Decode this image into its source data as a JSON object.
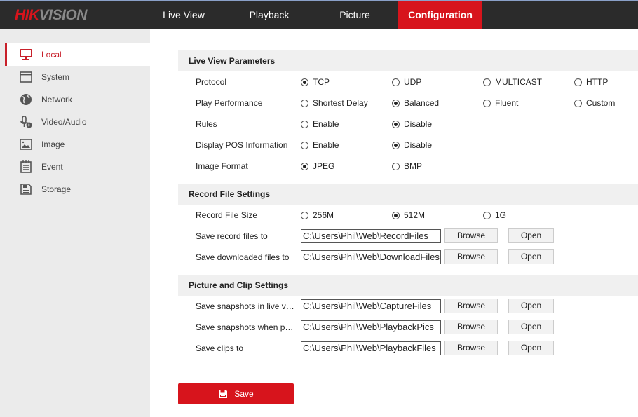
{
  "brand": {
    "part1": "HIK",
    "part2": "VISION"
  },
  "nav": [
    {
      "label": "Live View"
    },
    {
      "label": "Playback"
    },
    {
      "label": "Picture"
    },
    {
      "label": "Configuration",
      "active": true
    }
  ],
  "sidebar": [
    {
      "label": "Local",
      "icon": "monitor-icon",
      "active": true
    },
    {
      "label": "System",
      "icon": "window-icon"
    },
    {
      "label": "Network",
      "icon": "globe-icon"
    },
    {
      "label": "Video/Audio",
      "icon": "microphone-icon"
    },
    {
      "label": "Image",
      "icon": "image-icon"
    },
    {
      "label": "Event",
      "icon": "calendar-icon"
    },
    {
      "label": "Storage",
      "icon": "floppy-icon"
    }
  ],
  "sections": [
    {
      "title": "Live View Parameters",
      "rows": [
        {
          "label": "Protocol",
          "options": [
            {
              "label": "TCP",
              "checked": true
            },
            {
              "label": "UDP"
            },
            {
              "label": "MULTICAST"
            },
            {
              "label": "HTTP"
            }
          ]
        },
        {
          "label": "Play Performance",
          "options": [
            {
              "label": "Shortest Delay"
            },
            {
              "label": "Balanced",
              "checked": true
            },
            {
              "label": "Fluent"
            },
            {
              "label": "Custom"
            }
          ]
        },
        {
          "label": "Rules",
          "options": [
            {
              "label": "Enable"
            },
            {
              "label": "Disable",
              "checked": true
            }
          ]
        },
        {
          "label": "Display POS Information",
          "options": [
            {
              "label": "Enable"
            },
            {
              "label": "Disable",
              "checked": true
            }
          ]
        },
        {
          "label": "Image Format",
          "options": [
            {
              "label": "JPEG",
              "checked": true
            },
            {
              "label": "BMP"
            }
          ]
        }
      ]
    },
    {
      "title": "Record File Settings",
      "rows": [
        {
          "label": "Record File Size",
          "options": [
            {
              "label": "256M"
            },
            {
              "label": "512M",
              "checked": true
            },
            {
              "label": "1G"
            }
          ]
        },
        {
          "label": "Save record files to",
          "path": "C:\\Users\\Phil\\Web\\RecordFiles"
        },
        {
          "label": "Save downloaded files to",
          "path": "C:\\Users\\Phil\\Web\\DownloadFiles"
        }
      ]
    },
    {
      "title": "Picture and Clip Settings",
      "rows": [
        {
          "label": "Save snapshots in live view to",
          "path": "C:\\Users\\Phil\\Web\\CaptureFiles"
        },
        {
          "label": "Save snapshots when playback to",
          "path": "C:\\Users\\Phil\\Web\\PlaybackPics"
        },
        {
          "label": "Save clips to",
          "path": "C:\\Users\\Phil\\Web\\PlaybackFiles"
        }
      ]
    }
  ],
  "buttons": {
    "browse": "Browse",
    "open": "Open",
    "save": "Save"
  },
  "colors": {
    "accent": "#d7141c",
    "topbar": "#2b2b2b",
    "sidebar": "#ebebeb"
  }
}
